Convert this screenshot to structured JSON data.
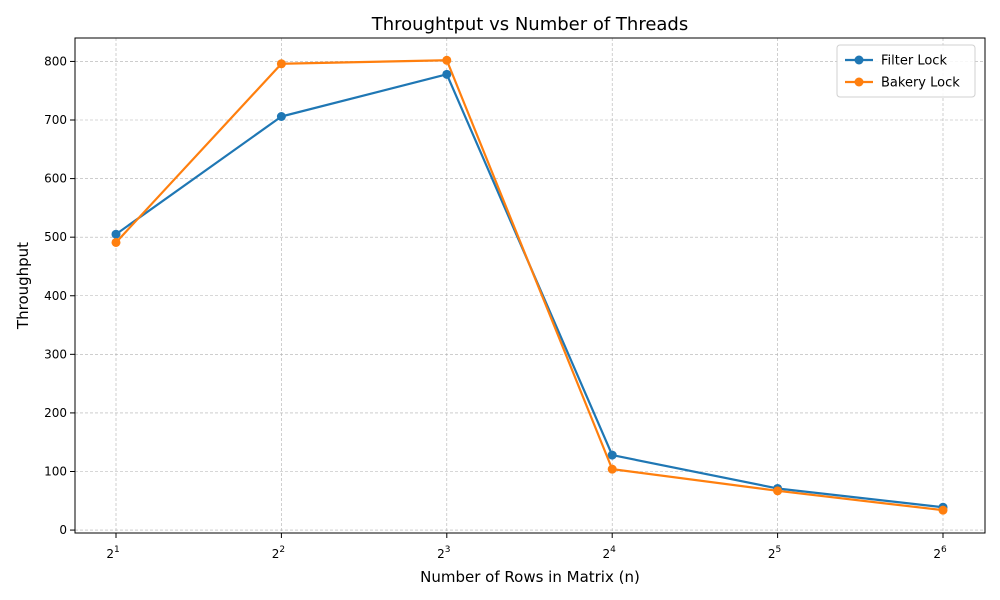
{
  "chart_data": {
    "type": "line",
    "title": "Throughtput vs Number of Threads",
    "xlabel": "Number of Rows in Matrix (n)",
    "ylabel": "Throughput",
    "x_scale": "log2",
    "x": [
      2,
      4,
      8,
      16,
      32,
      64
    ],
    "x_tick_labels": [
      {
        "base": "2",
        "exp": "1"
      },
      {
        "base": "2",
        "exp": "2"
      },
      {
        "base": "2",
        "exp": "3"
      },
      {
        "base": "2",
        "exp": "4"
      },
      {
        "base": "2",
        "exp": "5"
      },
      {
        "base": "2",
        "exp": "6"
      }
    ],
    "y_ticks": [
      "0",
      "100",
      "200",
      "300",
      "400",
      "500",
      "600",
      "700",
      "800"
    ],
    "ylim": [
      -5,
      840
    ],
    "grid": true,
    "legend_position": "top-right",
    "series": [
      {
        "name": "Filter Lock",
        "color": "#1f77b4",
        "values": [
          505,
          706,
          778,
          128,
          71,
          39
        ]
      },
      {
        "name": "Bakery Lock",
        "color": "#ff7f0e",
        "values": [
          491,
          796,
          802,
          104,
          67,
          34
        ]
      }
    ]
  }
}
